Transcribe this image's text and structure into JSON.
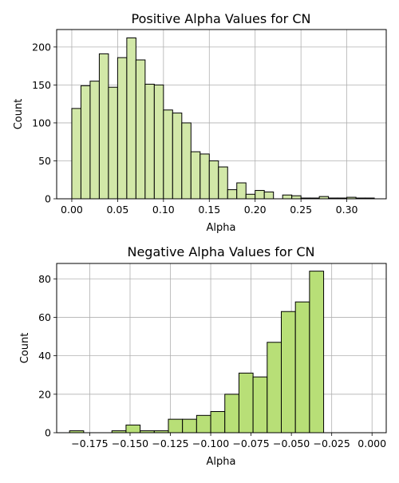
{
  "chart_data": [
    {
      "type": "bar",
      "title": "Positive Alpha Values for CN",
      "xlabel": "Alpha",
      "ylabel": "Count",
      "bar_color": "#d2e8a8",
      "edge_color": "#000000",
      "bin_start": 0.0,
      "bin_width": 0.01,
      "counts": [
        119,
        149,
        155,
        191,
        147,
        186,
        212,
        183,
        151,
        150,
        117,
        113,
        100,
        62,
        59,
        50,
        42,
        12,
        21,
        6,
        11,
        9,
        0,
        5,
        4,
        1,
        1,
        3,
        1,
        1,
        2,
        1,
        1
      ],
      "xlim": [
        -0.0165,
        0.343
      ],
      "ylim": [
        0,
        223
      ],
      "xticks": [
        0.0,
        0.05,
        0.1,
        0.15,
        0.2,
        0.25,
        0.3
      ],
      "xtick_labels": [
        "0.00",
        "0.05",
        "0.10",
        "0.15",
        "0.20",
        "0.25",
        "0.30"
      ],
      "yticks": [
        0,
        50,
        100,
        150,
        200
      ],
      "ytick_labels": [
        "0",
        "50",
        "100",
        "150",
        "200"
      ],
      "grid": true
    },
    {
      "type": "bar",
      "title": "Negative Alpha Values for CN",
      "xlabel": "Alpha",
      "ylabel": "Count",
      "bar_color": "#b8df77",
      "edge_color": "#000000",
      "bin_start": -0.1875,
      "bin_width": 0.00875,
      "counts": [
        1,
        0,
        0,
        1,
        4,
        1,
        1,
        7,
        7,
        9,
        11,
        20,
        31,
        29,
        47,
        63,
        68,
        84
      ],
      "xlim": [
        -0.1955,
        0.0088
      ],
      "ylim": [
        0,
        88
      ],
      "xticks": [
        -0.175,
        -0.15,
        -0.125,
        -0.1,
        -0.075,
        -0.05,
        -0.025,
        0.0
      ],
      "xtick_labels": [
        "−0.175",
        "−0.150",
        "−0.125",
        "−0.100",
        "−0.075",
        "−0.050",
        "−0.025",
        "0.000"
      ],
      "yticks": [
        0,
        20,
        40,
        60,
        80
      ],
      "ytick_labels": [
        "0",
        "20",
        "40",
        "60",
        "80"
      ],
      "grid": true
    }
  ]
}
